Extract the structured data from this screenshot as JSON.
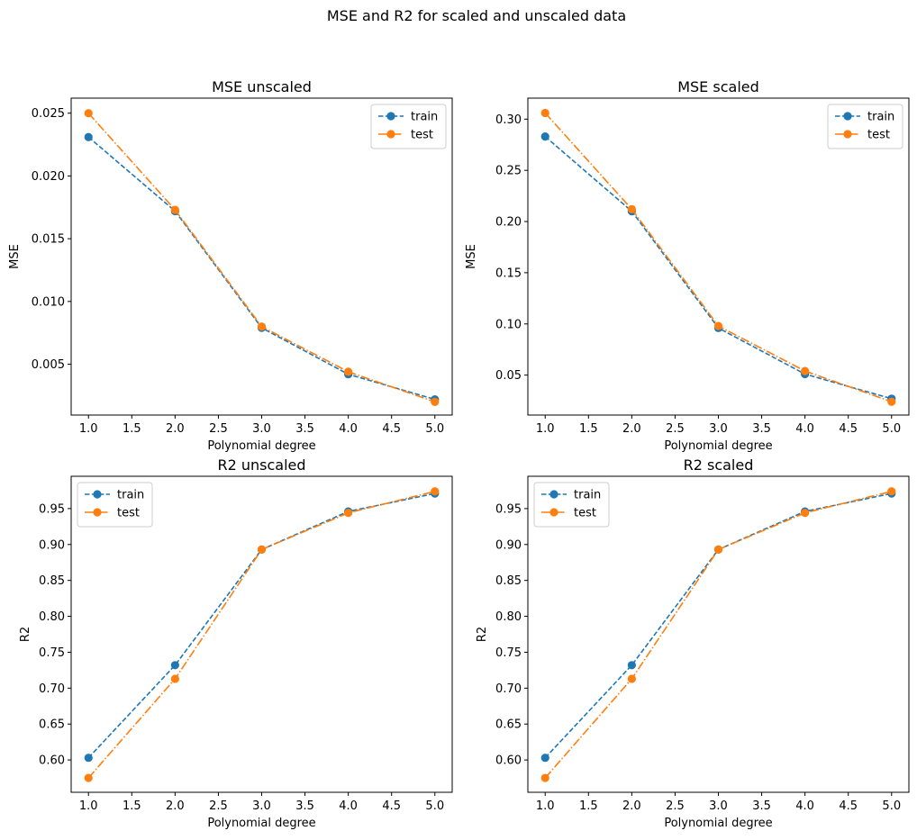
{
  "figure": {
    "suptitle": "MSE and R2 for scaled and unscaled data"
  },
  "colors": {
    "train": "#1f77b4",
    "test": "#ff7f0e"
  },
  "chart_data": [
    {
      "type": "line",
      "title": "MSE unscaled",
      "xlabel": "Polynomial degree",
      "ylabel": "MSE",
      "x": [
        1.0,
        2.0,
        3.0,
        4.0,
        5.0
      ],
      "xlim": [
        0.8,
        5.2
      ],
      "xticks": [
        "1.0",
        "1.5",
        "2.0",
        "2.5",
        "3.0",
        "3.5",
        "4.0",
        "4.5",
        "5.0"
      ],
      "ylim": [
        0.00095,
        0.0262
      ],
      "yticks": [
        "0.005",
        "0.010",
        "0.015",
        "0.020",
        "0.025"
      ],
      "legend": "upper right",
      "series": [
        {
          "name": "train",
          "linestyle": "dashed",
          "values": [
            0.0231,
            0.0172,
            0.0079,
            0.0042,
            0.0022
          ]
        },
        {
          "name": "test",
          "linestyle": "dashdot",
          "values": [
            0.025,
            0.0173,
            0.008,
            0.0044,
            0.002
          ]
        }
      ]
    },
    {
      "type": "line",
      "title": "MSE scaled",
      "xlabel": "Polynomial degree",
      "ylabel": "MSE",
      "x": [
        1.0,
        2.0,
        3.0,
        4.0,
        5.0
      ],
      "xlim": [
        0.8,
        5.2
      ],
      "xticks": [
        "1.0",
        "1.5",
        "2.0",
        "2.5",
        "3.0",
        "3.5",
        "4.0",
        "4.5",
        "5.0"
      ],
      "ylim": [
        0.011,
        0.3205
      ],
      "yticks": [
        "0.05",
        "0.10",
        "0.15",
        "0.20",
        "0.25",
        "0.30"
      ],
      "legend": "upper right",
      "series": [
        {
          "name": "train",
          "linestyle": "dashed",
          "values": [
            0.283,
            0.21,
            0.096,
            0.051,
            0.027
          ]
        },
        {
          "name": "test",
          "linestyle": "dashdot",
          "values": [
            0.306,
            0.212,
            0.098,
            0.054,
            0.024
          ]
        }
      ]
    },
    {
      "type": "line",
      "title": "R2 unscaled",
      "xlabel": "Polynomial degree",
      "ylabel": "R2",
      "x": [
        1.0,
        2.0,
        3.0,
        4.0,
        5.0
      ],
      "xlim": [
        0.8,
        5.2
      ],
      "xticks": [
        "1.0",
        "1.5",
        "2.0",
        "2.5",
        "3.0",
        "3.5",
        "4.0",
        "4.5",
        "5.0"
      ],
      "ylim": [
        0.555,
        0.995
      ],
      "yticks": [
        "0.60",
        "0.65",
        "0.70",
        "0.75",
        "0.80",
        "0.85",
        "0.90",
        "0.95"
      ],
      "legend": "upper left",
      "series": [
        {
          "name": "train",
          "linestyle": "dashed",
          "values": [
            0.603,
            0.732,
            0.893,
            0.946,
            0.971
          ]
        },
        {
          "name": "test",
          "linestyle": "dashdot",
          "values": [
            0.575,
            0.713,
            0.893,
            0.944,
            0.974
          ]
        }
      ]
    },
    {
      "type": "line",
      "title": "R2 scaled",
      "xlabel": "Polynomial degree",
      "ylabel": "R2",
      "x": [
        1.0,
        2.0,
        3.0,
        4.0,
        5.0
      ],
      "xlim": [
        0.8,
        5.2
      ],
      "xticks": [
        "1.0",
        "1.5",
        "2.0",
        "2.5",
        "3.0",
        "3.5",
        "4.0",
        "4.5",
        "5.0"
      ],
      "ylim": [
        0.555,
        0.995
      ],
      "yticks": [
        "0.60",
        "0.65",
        "0.70",
        "0.75",
        "0.80",
        "0.85",
        "0.90",
        "0.95"
      ],
      "legend": "upper left",
      "series": [
        {
          "name": "train",
          "linestyle": "dashed",
          "values": [
            0.603,
            0.732,
            0.893,
            0.946,
            0.971
          ]
        },
        {
          "name": "test",
          "linestyle": "dashdot",
          "values": [
            0.575,
            0.713,
            0.893,
            0.944,
            0.974
          ]
        }
      ]
    }
  ]
}
